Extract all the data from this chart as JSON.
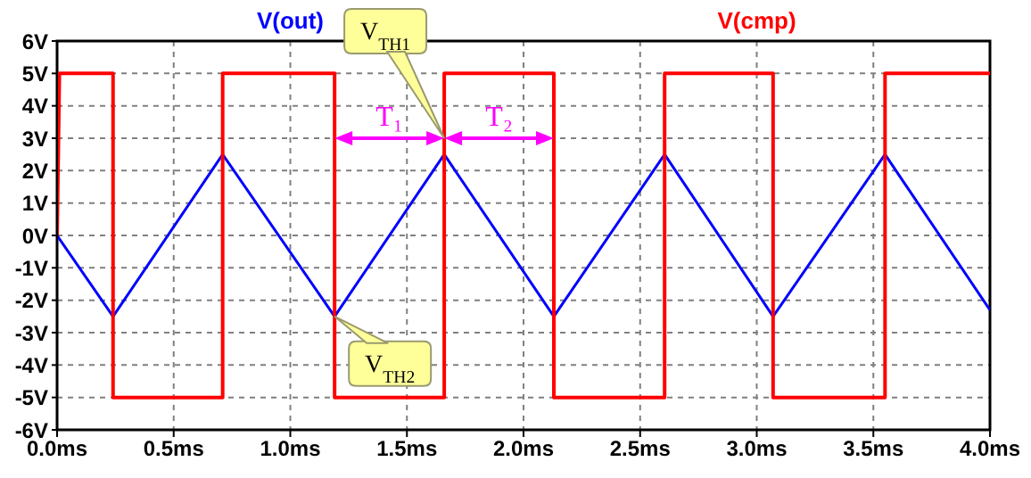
{
  "chart_data": {
    "type": "line",
    "xlim": [
      0,
      4
    ],
    "ylim": [
      -6,
      6
    ],
    "xticks": [
      {
        "value": 0,
        "label": "0.0ms"
      },
      {
        "value": 0.5,
        "label": "0.5ms"
      },
      {
        "value": 1,
        "label": "1.0ms"
      },
      {
        "value": 1.5,
        "label": "1.5ms"
      },
      {
        "value": 2,
        "label": "2.0ms"
      },
      {
        "value": 2.5,
        "label": "2.5ms"
      },
      {
        "value": 3,
        "label": "3.0ms"
      },
      {
        "value": 3.5,
        "label": "3.5ms"
      },
      {
        "value": 4,
        "label": "4.0ms"
      }
    ],
    "yticks": [
      {
        "value": -6,
        "label": "-6V"
      },
      {
        "value": -5,
        "label": "-5V"
      },
      {
        "value": -4,
        "label": "-4V"
      },
      {
        "value": -3,
        "label": "-3V"
      },
      {
        "value": -2,
        "label": "-2V"
      },
      {
        "value": -1,
        "label": "-1V"
      },
      {
        "value": 0,
        "label": "0V"
      },
      {
        "value": 1,
        "label": "1V"
      },
      {
        "value": 2,
        "label": "2V"
      },
      {
        "value": 3,
        "label": "3V"
      },
      {
        "value": 4,
        "label": "4V"
      },
      {
        "value": 5,
        "label": "5V"
      },
      {
        "value": 6,
        "label": "6V"
      }
    ],
    "grid": true,
    "legend": "top",
    "marker": "none",
    "line_style": "solid",
    "series": [
      {
        "name": "V(out)",
        "color": "#0000ff",
        "x": [
          0,
          0.24,
          0.71,
          1.19,
          1.66,
          2.13,
          2.605,
          3.07,
          3.55,
          4.0
        ],
        "values": [
          0,
          -2.5,
          2.5,
          -2.5,
          2.5,
          -2.5,
          2.5,
          -2.5,
          2.5,
          -2.3
        ]
      },
      {
        "name": "V(cmp)",
        "color": "#ff0000",
        "x": [
          0,
          0.01,
          0.24,
          0.24,
          0.71,
          0.71,
          1.19,
          1.19,
          1.66,
          1.66,
          2.13,
          2.13,
          2.605,
          2.605,
          3.07,
          3.07,
          3.55,
          3.55,
          4.0
        ],
        "values": [
          0,
          5,
          5,
          -5,
          -5,
          5,
          5,
          -5,
          -5,
          5,
          5,
          -5,
          -5,
          5,
          5,
          -5,
          -5,
          5,
          5
        ]
      }
    ],
    "annotations": [
      "V$_{TH1}$",
      "V$_{TH2}$",
      {
        "text": "T₁",
        "x": 1.19,
        "y": 3
      },
      {
        "text": "T₂",
        "x": 1.66,
        "y": 3
      }
    ]
  }
}
